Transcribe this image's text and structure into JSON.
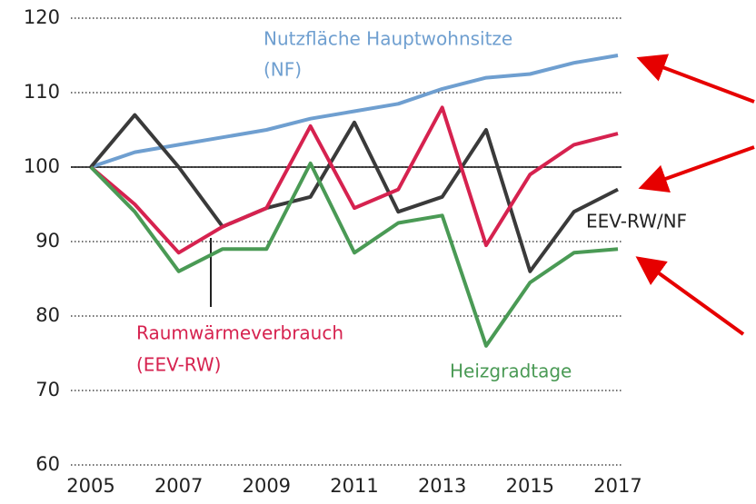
{
  "chart_data": {
    "type": "line",
    "x": [
      2005,
      2006,
      2007,
      2008,
      2009,
      2010,
      2011,
      2012,
      2013,
      2014,
      2015,
      2016,
      2017
    ],
    "xlim": [
      2005,
      2017
    ],
    "xticks": [
      2005,
      2007,
      2009,
      2011,
      2013,
      2015,
      2017
    ],
    "ylim": [
      60,
      120
    ],
    "yticks": [
      60,
      70,
      80,
      90,
      100,
      110,
      120
    ],
    "grid": true,
    "reference_line": 100,
    "series": [
      {
        "name": [
          "Nutzfläche Hauptwohnsitze",
          "(NF)"
        ],
        "color": "#6f9fd0",
        "values": [
          100,
          102,
          103,
          104,
          105,
          106.5,
          107.5,
          108.5,
          110.5,
          112,
          112.5,
          114,
          115
        ]
      },
      {
        "name": [
          "EEV-RW/NF"
        ],
        "color": "#3a3a3a",
        "values": [
          100,
          107,
          100,
          92,
          94.5,
          96,
          106,
          94,
          96,
          105,
          86,
          94,
          97
        ]
      },
      {
        "name": [
          "Raumwärmeverbrauch",
          "(EEV-RW)"
        ],
        "color": "#d6224f",
        "values": [
          100,
          95,
          88.5,
          92,
          94.5,
          105.5,
          94.5,
          97,
          108,
          89.5,
          99,
          103,
          104.5
        ]
      },
      {
        "name": [
          "Heizgradtage"
        ],
        "color": "#4a9a55",
        "values": [
          100,
          94,
          86,
          89,
          89,
          100.5,
          88.5,
          92.5,
          93.5,
          76,
          84.5,
          88.5,
          89
        ]
      }
    ]
  }
}
